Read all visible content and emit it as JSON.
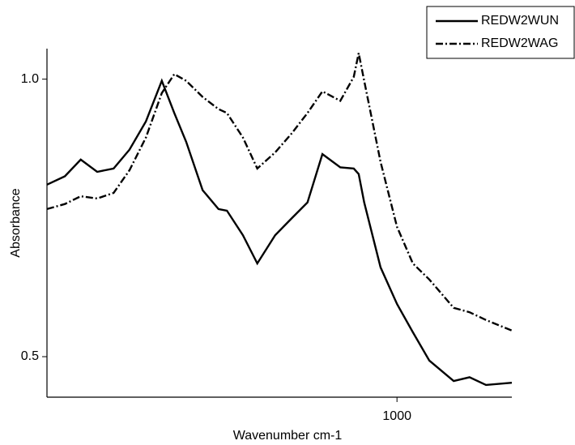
{
  "chart_data": {
    "type": "line",
    "x_label": "Wavenumber cm-1",
    "y_label": "Absorbance",
    "x": [
      296,
      332,
      364,
      397,
      430,
      462,
      495,
      527,
      552,
      576,
      609,
      641,
      658,
      690,
      719,
      755,
      788,
      820,
      850,
      886,
      913,
      923,
      934,
      967,
      1000,
      1032,
      1065,
      1114,
      1146,
      1179,
      1231
    ],
    "series": [
      {
        "name": "REDW2WUN",
        "color": "#000000",
        "dash": "solid",
        "values": [
          0.81,
          0.825,
          0.855,
          0.833,
          0.839,
          0.873,
          0.924,
          0.997,
          0.939,
          0.887,
          0.8,
          0.766,
          0.763,
          0.719,
          0.668,
          0.719,
          0.749,
          0.778,
          0.865,
          0.841,
          0.839,
          0.829,
          0.778,
          0.661,
          0.595,
          0.544,
          0.493,
          0.456,
          0.463,
          0.449,
          0.453
        ]
      },
      {
        "name": "REDW2WAG",
        "color": "#000000",
        "dash": "dashdot",
        "values": [
          0.766,
          0.775,
          0.789,
          0.785,
          0.795,
          0.836,
          0.895,
          0.975,
          1.009,
          0.997,
          0.968,
          0.946,
          0.939,
          0.895,
          0.839,
          0.868,
          0.902,
          0.939,
          0.978,
          0.961,
          1.004,
          1.047,
          0.997,
          0.851,
          0.734,
          0.668,
          0.639,
          0.588,
          0.58,
          0.566,
          0.547
        ]
      }
    ],
    "xlim": [
      296,
      1231
    ],
    "xticks": [
      1000
    ],
    "ylim": [
      0.427,
      1.055
    ],
    "yticks": [
      {
        "value": 0.5,
        "label": "0.5"
      },
      {
        "value": 1.0,
        "label": "1.0"
      }
    ],
    "legend": "top-right",
    "grid": false
  }
}
